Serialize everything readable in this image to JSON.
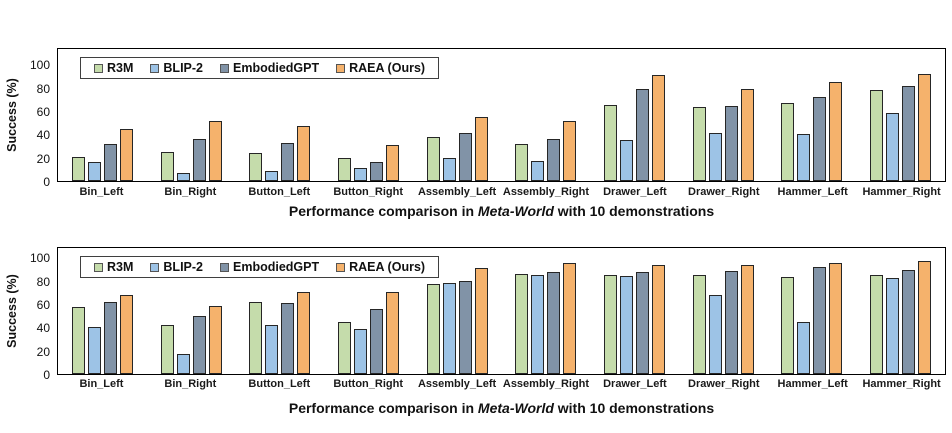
{
  "figure": {
    "background": "#ffffff"
  },
  "chart_data": [
    {
      "type": "bar",
      "ylabel": "Success (%)",
      "ylim": [
        0,
        100
      ],
      "yticks": [
        0,
        20,
        40,
        60,
        80,
        100
      ],
      "grid": false,
      "legend_position": "top-left-inside",
      "categories": [
        "Bin_Left",
        "Bin_Right",
        "Button_Left",
        "Button_Right",
        "Assembly_Left",
        "Assembly_Right",
        "Drawer_Left",
        "Drawer_Right",
        "Hammer_Left",
        "Hammer_Right"
      ],
      "series": [
        {
          "name": "R3M",
          "color": "#c5dcab",
          "values": [
            21,
            25,
            24,
            20,
            38,
            32,
            65,
            63,
            67,
            78
          ]
        },
        {
          "name": "BLIP-2",
          "color": "#9dc3e6",
          "values": [
            16,
            7,
            9,
            11,
            20,
            17,
            35,
            41,
            40,
            58
          ]
        },
        {
          "name": "EmbodiedGPT",
          "color": "#8193a7",
          "values": [
            32,
            36,
            33,
            16,
            41,
            36,
            79,
            64,
            72,
            81
          ]
        },
        {
          "name": "RAEA (Ours)",
          "color": "#f5b26c",
          "values": [
            45,
            51,
            47,
            31,
            55,
            51,
            91,
            79,
            85,
            92
          ]
        }
      ],
      "caption": {
        "prefix": "Performance comparison in ",
        "italic": "Meta-World",
        "suffix": " with 10 demonstrations"
      }
    },
    {
      "type": "bar",
      "ylabel": "Success (%)",
      "ylim": [
        0,
        100
      ],
      "yticks": [
        0,
        20,
        40,
        60,
        80,
        100
      ],
      "grid": false,
      "legend_position": "top-left-inside",
      "categories": [
        "Bin_Left",
        "Bin_Right",
        "Button_Left",
        "Button_Right",
        "Assembly_Left",
        "Assembly_Right",
        "Drawer_Left",
        "Drawer_Right",
        "Hammer_Left",
        "Hammer_Right"
      ],
      "series": [
        {
          "name": "R3M",
          "color": "#c5dcab",
          "values": [
            57,
            42,
            62,
            45,
            77,
            86,
            85,
            85,
            83,
            85
          ]
        },
        {
          "name": "BLIP-2",
          "color": "#9dc3e6",
          "values": [
            40,
            17,
            42,
            39,
            78,
            85,
            84,
            68,
            45,
            82
          ]
        },
        {
          "name": "EmbodiedGPT",
          "color": "#8193a7",
          "values": [
            62,
            50,
            61,
            56,
            80,
            87,
            87,
            88,
            92,
            89
          ]
        },
        {
          "name": "RAEA (Ours)",
          "color": "#f5b26c",
          "values": [
            68,
            58,
            70,
            70,
            91,
            95,
            93,
            93,
            95,
            97
          ]
        }
      ],
      "caption": {
        "prefix": "Performance comparison in ",
        "italic": "Meta-World",
        "suffix": " with 10 demonstrations"
      }
    }
  ]
}
